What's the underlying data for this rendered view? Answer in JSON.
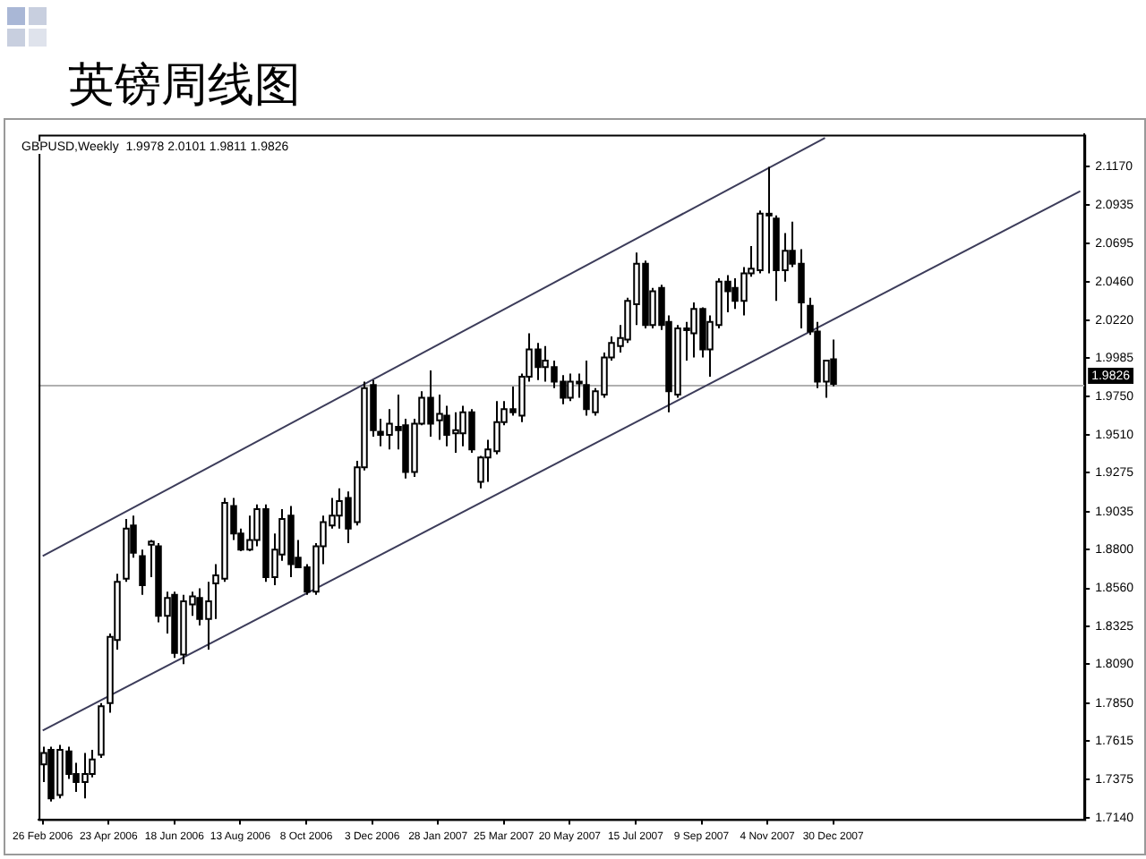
{
  "chart_data": {
    "type": "candlestick",
    "title": "英镑周线图",
    "subtitle": "GBPUSD,Weekly  1.9978 2.0101 1.9811 1.9826",
    "categories": [
      "26 Feb 2006",
      null,
      null,
      null,
      null,
      null,
      null,
      null,
      "23 Apr 2006",
      null,
      null,
      null,
      null,
      null,
      null,
      null,
      "18 Jun 2006",
      null,
      null,
      null,
      null,
      null,
      null,
      null,
      "13 Aug 2006",
      null,
      null,
      null,
      null,
      null,
      null,
      null,
      "8 Oct 2006",
      null,
      null,
      null,
      null,
      null,
      null,
      null,
      "3 Dec 2006",
      null,
      null,
      null,
      null,
      null,
      null,
      null,
      "28 Jan 2007",
      null,
      null,
      null,
      null,
      null,
      null,
      null,
      "25 Mar 2007",
      null,
      null,
      null,
      null,
      null,
      null,
      null,
      "20 May 2007",
      null,
      null,
      null,
      null,
      null,
      null,
      null,
      "15 Jul 2007",
      null,
      null,
      null,
      null,
      null,
      null,
      null,
      "9 Sep 2007",
      null,
      null,
      null,
      null,
      null,
      null,
      null,
      "4 Nov 2007",
      null,
      null,
      null,
      null,
      null,
      null,
      null,
      "30 Dec 2007",
      null,
      null,
      null,
      null,
      null,
      null,
      null,
      null,
      null,
      null,
      null,
      null,
      null,
      null,
      null,
      null,
      null,
      null,
      null,
      null,
      null,
      null,
      null,
      null,
      null,
      null,
      null,
      null,
      null,
      null
    ],
    "ohlc": [
      [
        1.747,
        1.758,
        1.736,
        1.754
      ],
      [
        1.756,
        1.758,
        1.724,
        1.726
      ],
      [
        1.728,
        1.759,
        1.726,
        1.756
      ],
      [
        1.755,
        1.758,
        1.738,
        1.741
      ],
      [
        1.741,
        1.748,
        1.73,
        1.736
      ],
      [
        1.736,
        1.754,
        1.726,
        1.741
      ],
      [
        1.741,
        1.756,
        1.739,
        1.75
      ],
      [
        1.753,
        1.785,
        1.751,
        1.783
      ],
      [
        1.785,
        1.828,
        1.779,
        1.826
      ],
      [
        1.824,
        1.865,
        1.818,
        1.86
      ],
      [
        1.862,
        1.899,
        1.86,
        1.893
      ],
      [
        1.895,
        1.901,
        1.875,
        1.878
      ],
      [
        1.876,
        1.88,
        1.852,
        1.858
      ],
      [
        1.883,
        1.886,
        1.863,
        1.885
      ],
      [
        1.882,
        1.884,
        1.835,
        1.839
      ],
      [
        1.839,
        1.854,
        1.828,
        1.85
      ],
      [
        1.852,
        1.854,
        1.813,
        1.816
      ],
      [
        1.815,
        1.852,
        1.809,
        1.848
      ],
      [
        1.846,
        1.854,
        1.839,
        1.851
      ],
      [
        1.85,
        1.856,
        1.833,
        1.837
      ],
      [
        1.837,
        1.86,
        1.818,
        1.848
      ],
      [
        1.859,
        1.871,
        1.837,
        1.864
      ],
      [
        1.862,
        1.912,
        1.86,
        1.909
      ],
      [
        1.907,
        1.912,
        1.886,
        1.89
      ],
      [
        1.89,
        1.893,
        1.879,
        1.88
      ],
      [
        1.88,
        1.901,
        1.879,
        1.886
      ],
      [
        1.886,
        1.908,
        1.882,
        1.905
      ],
      [
        1.905,
        1.908,
        1.86,
        1.863
      ],
      [
        1.863,
        1.89,
        1.858,
        1.88
      ],
      [
        1.877,
        1.905,
        1.873,
        1.899
      ],
      [
        1.901,
        1.907,
        1.863,
        1.871
      ],
      [
        1.875,
        1.886,
        1.869,
        1.869
      ],
      [
        1.869,
        1.871,
        1.852,
        1.854
      ],
      [
        1.854,
        1.884,
        1.852,
        1.882
      ],
      [
        1.882,
        1.901,
        1.871,
        1.897
      ],
      [
        1.895,
        1.912,
        1.893,
        1.901
      ],
      [
        1.901,
        1.918,
        1.893,
        1.91
      ],
      [
        1.912,
        1.916,
        1.884,
        1.893
      ],
      [
        1.897,
        1.935,
        1.895,
        1.931
      ],
      [
        1.931,
        1.984,
        1.929,
        1.98
      ],
      [
        1.982,
        1.985,
        1.95,
        1.954
      ],
      [
        1.953,
        1.961,
        1.944,
        1.951
      ],
      [
        1.951,
        1.967,
        1.942,
        1.958
      ],
      [
        1.956,
        1.976,
        1.942,
        1.954
      ],
      [
        1.957,
        1.961,
        1.924,
        1.928
      ],
      [
        1.928,
        1.961,
        1.925,
        1.958
      ],
      [
        1.958,
        1.978,
        1.957,
        1.974
      ],
      [
        1.974,
        1.991,
        1.95,
        1.958
      ],
      [
        1.96,
        1.976,
        1.948,
        1.964
      ],
      [
        1.963,
        1.969,
        1.944,
        1.951
      ],
      [
        1.952,
        1.965,
        1.94,
        1.954
      ],
      [
        1.952,
        1.969,
        1.944,
        1.965
      ],
      [
        1.965,
        1.967,
        1.94,
        1.942
      ],
      [
        1.922,
        1.938,
        1.918,
        1.937
      ],
      [
        1.937,
        1.948,
        1.922,
        1.942
      ],
      [
        1.941,
        1.972,
        1.939,
        1.959
      ],
      [
        1.959,
        1.972,
        1.957,
        1.967
      ],
      [
        1.967,
        1.981,
        1.963,
        1.965
      ],
      [
        1.963,
        1.989,
        1.959,
        1.987
      ],
      [
        1.987,
        2.014,
        1.984,
        2.004
      ],
      [
        2.004,
        2.008,
        1.985,
        1.993
      ],
      [
        1.993,
        2.006,
        1.984,
        1.997
      ],
      [
        1.993,
        1.997,
        1.98,
        1.984
      ],
      [
        1.984,
        1.988,
        1.97,
        1.974
      ],
      [
        1.974,
        1.989,
        1.972,
        1.984
      ],
      [
        1.983,
        1.989,
        1.974,
        1.984
      ],
      [
        1.982,
        1.997,
        1.963,
        1.967
      ],
      [
        1.965,
        1.98,
        1.963,
        1.978
      ],
      [
        1.976,
        2.002,
        1.974,
        1.999
      ],
      [
        1.999,
        2.012,
        1.997,
        2.008
      ],
      [
        2.006,
        2.019,
        2.002,
        2.011
      ],
      [
        2.01,
        2.036,
        2.008,
        2.034
      ],
      [
        2.032,
        2.064,
        2.019,
        2.057
      ],
      [
        2.057,
        2.059,
        2.017,
        2.019
      ],
      [
        2.019,
        2.042,
        2.017,
        2.04
      ],
      [
        2.042,
        2.044,
        2.016,
        2.019
      ],
      [
        2.021,
        2.025,
        1.965,
        1.978
      ],
      [
        1.976,
        2.019,
        1.974,
        2.017
      ],
      [
        2.016,
        2.021,
        1.997,
        2.017
      ],
      [
        2.014,
        2.033,
        1.999,
        2.029
      ],
      [
        2.029,
        2.03,
        1.999,
        2.004
      ],
      [
        2.004,
        2.025,
        1.987,
        2.021
      ],
      [
        2.019,
        2.048,
        2.017,
        2.046
      ],
      [
        2.046,
        2.05,
        2.027,
        2.04
      ],
      [
        2.042,
        2.048,
        2.029,
        2.034
      ],
      [
        2.034,
        2.055,
        2.025,
        2.051
      ],
      [
        2.051,
        2.068,
        2.049,
        2.054
      ],
      [
        2.053,
        2.09,
        2.051,
        2.088
      ],
      [
        2.088,
        2.117,
        2.051,
        2.087
      ],
      [
        2.085,
        2.087,
        2.034,
        2.053
      ],
      [
        2.053,
        2.076,
        2.046,
        2.065
      ],
      [
        2.065,
        2.083,
        2.055,
        2.057
      ],
      [
        2.057,
        2.066,
        2.017,
        2.033
      ],
      [
        2.031,
        2.036,
        2.013,
        2.015
      ],
      [
        2.015,
        2.021,
        1.98,
        1.984
      ],
      [
        1.984,
        1.997,
        1.974,
        1.997
      ],
      [
        1.9978,
        2.0101,
        1.9811,
        1.9826
      ],
      null,
      null,
      null,
      null,
      null,
      null,
      null,
      null,
      null,
      null,
      null,
      null,
      null,
      null,
      null,
      null,
      null,
      null,
      null,
      null,
      null,
      null,
      null,
      null,
      null,
      null,
      null,
      null,
      null,
      null
    ],
    "series": [
      {
        "type": "line",
        "values": [
          1.876,
          null,
          null,
          null,
          null,
          null,
          null,
          null,
          null,
          null,
          null,
          null,
          null,
          null,
          null,
          null,
          null,
          null,
          null,
          null,
          null,
          null,
          null,
          null,
          null,
          null,
          null,
          null,
          null,
          null,
          null,
          null,
          null,
          null,
          null,
          null,
          null,
          null,
          null,
          null,
          null,
          null,
          null,
          null,
          null,
          null,
          null,
          null,
          null,
          null,
          null,
          null,
          null,
          null,
          null,
          null,
          null,
          null,
          null,
          null,
          null,
          null,
          null,
          null,
          null,
          null,
          null,
          null,
          null,
          null,
          null,
          null,
          null,
          null,
          null,
          null,
          null,
          null,
          null,
          null,
          null,
          null,
          null,
          null,
          null,
          null,
          null,
          null,
          null,
          null,
          null,
          null,
          null,
          null,
          null,
          2.135,
          null,
          null,
          null,
          null,
          null,
          null,
          null,
          null,
          null,
          null,
          null,
          null,
          null,
          null,
          null,
          null,
          null,
          null,
          null,
          null,
          null,
          null,
          null,
          null,
          null,
          null,
          null,
          null,
          null,
          null,
          null
        ],
        "color": "#3c3c5a"
      },
      {
        "type": "line",
        "values": [
          1.768,
          null,
          null,
          null,
          null,
          null,
          null,
          null,
          null,
          null,
          null,
          null,
          null,
          null,
          null,
          null,
          null,
          null,
          null,
          null,
          null,
          null,
          null,
          null,
          null,
          null,
          null,
          null,
          null,
          null,
          null,
          null,
          null,
          null,
          null,
          null,
          null,
          null,
          null,
          null,
          null,
          null,
          null,
          null,
          null,
          null,
          null,
          null,
          null,
          null,
          null,
          null,
          null,
          null,
          null,
          null,
          null,
          null,
          null,
          null,
          null,
          null,
          null,
          null,
          null,
          null,
          null,
          null,
          null,
          null,
          null,
          null,
          null,
          null,
          null,
          null,
          null,
          null,
          null,
          null,
          null,
          null,
          null,
          null,
          null,
          null,
          null,
          null,
          null,
          null,
          null,
          null,
          null,
          null,
          null,
          null,
          null,
          null,
          null,
          null,
          null,
          null,
          null,
          null,
          null,
          null,
          null,
          null,
          null,
          null,
          null,
          null,
          null,
          null,
          null,
          null,
          null,
          null,
          null,
          null,
          null,
          null,
          null,
          null,
          null,
          null,
          2.102
        ],
        "color": "#3c3c5a"
      }
    ],
    "ref_lines": [
      {
        "axis": "y",
        "value": 1.9826,
        "label": "1.9826",
        "color": "#b0b0b0"
      }
    ],
    "ylim": [
      1.713,
      2.137
    ],
    "yticks": [
      {
        "value": 1.714,
        "label": "1.7140"
      },
      {
        "value": 1.7375,
        "label": "1.7375"
      },
      {
        "value": 1.7615,
        "label": "1.7615"
      },
      {
        "value": 1.785,
        "label": "1.7850"
      },
      {
        "value": 1.809,
        "label": "1.8090"
      },
      {
        "value": 1.8325,
        "label": "1.8325"
      },
      {
        "value": 1.856,
        "label": "1.8560"
      },
      {
        "value": 1.88,
        "label": "1.8800"
      },
      {
        "value": 1.9035,
        "label": "1.9035"
      },
      {
        "value": 1.9275,
        "label": "1.9275"
      },
      {
        "value": 1.951,
        "label": "1.9510"
      },
      {
        "value": 1.975,
        "label": "1.9750"
      },
      {
        "value": 1.9985,
        "label": "1.9985"
      },
      {
        "value": 2.022,
        "label": "2.0220"
      },
      {
        "value": 2.046,
        "label": "2.0460"
      },
      {
        "value": 2.0695,
        "label": "2.0695"
      },
      {
        "value": 2.0935,
        "label": "2.0935"
      },
      {
        "value": 2.117,
        "label": "2.1170"
      }
    ]
  }
}
